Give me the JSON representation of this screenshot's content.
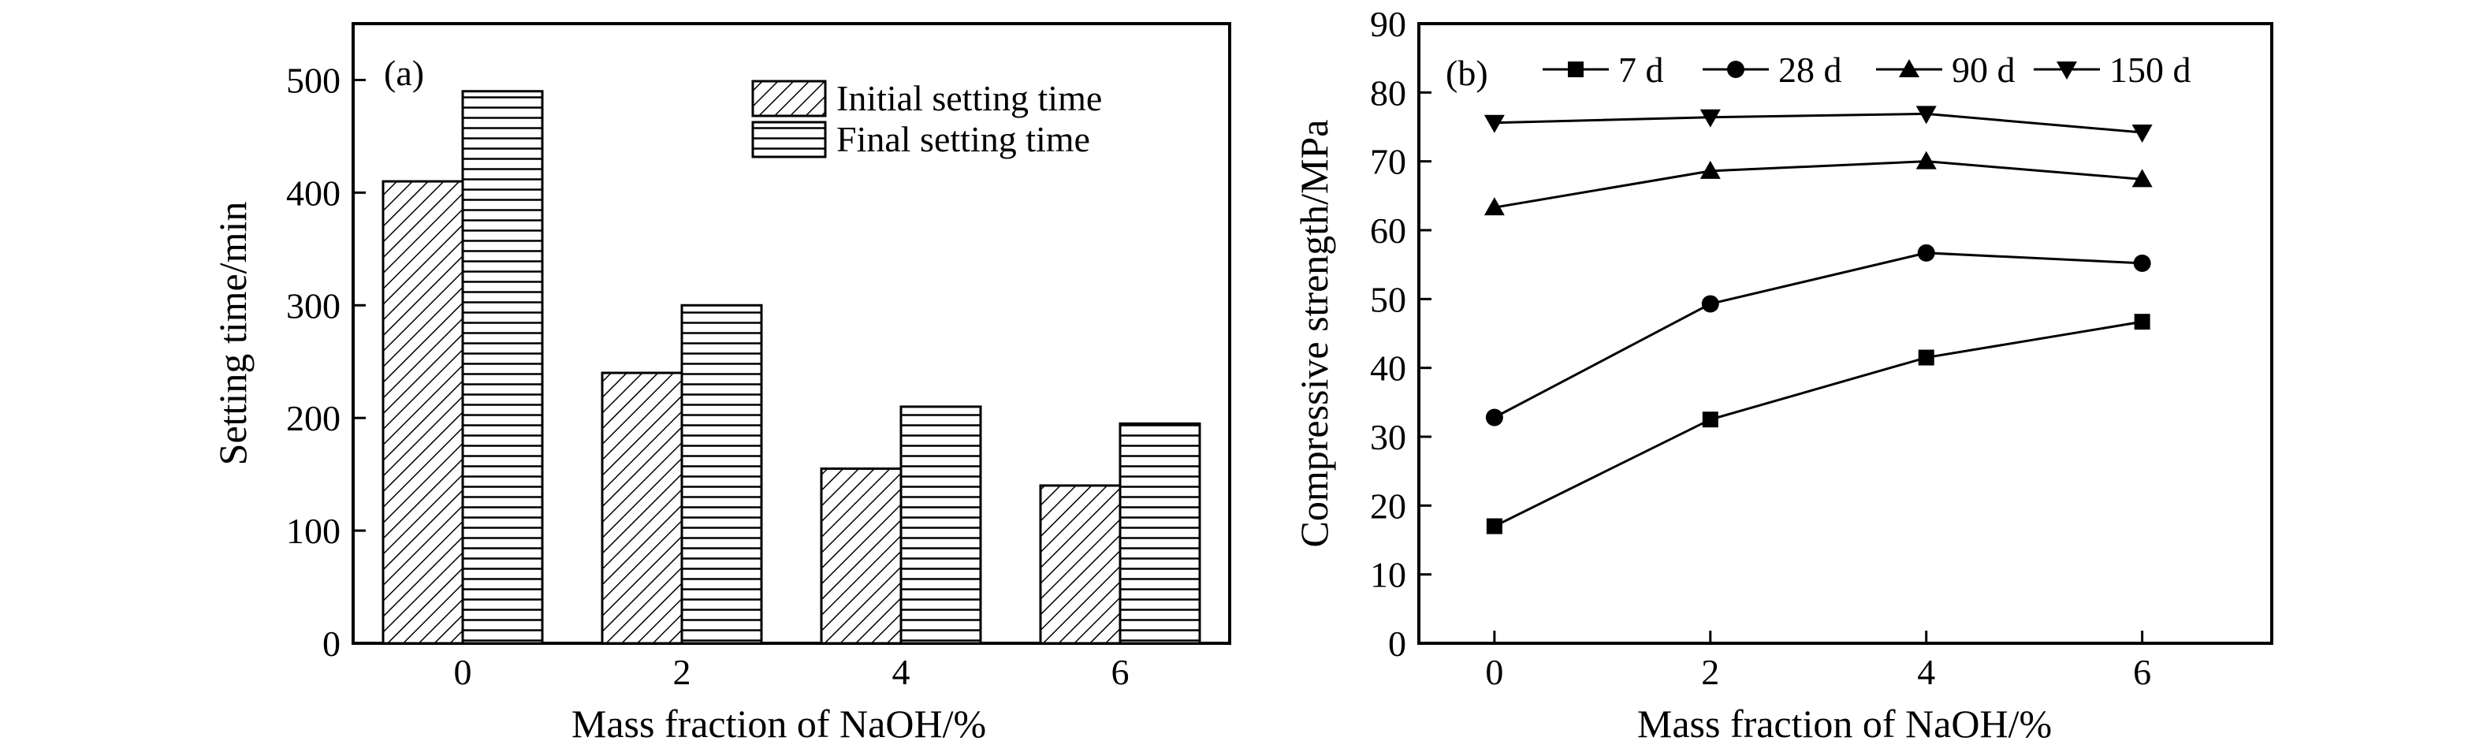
{
  "chart_data": [
    {
      "type": "bar",
      "panel_label": "(a)",
      "categories": [
        "0",
        "2",
        "4",
        "6"
      ],
      "series": [
        {
          "name": "Initial setting time",
          "pattern": "diagonal-hatch",
          "values": [
            410,
            240,
            155,
            140
          ]
        },
        {
          "name": "Final setting time",
          "pattern": "horizontal-hatch",
          "values": [
            490,
            300,
            210,
            195
          ]
        }
      ],
      "xlabel": "Mass fraction of NaOH/%",
      "ylabel": "Setting time/min",
      "ylim": [
        0,
        550
      ],
      "yticks": [
        0,
        100,
        200,
        300,
        400,
        500
      ],
      "grid": false,
      "legend_position": "top-right"
    },
    {
      "type": "line",
      "panel_label": "(b)",
      "x": [
        0,
        2,
        4,
        6
      ],
      "series": [
        {
          "name": "7 d",
          "marker": "square",
          "values": [
            17,
            32.5,
            41.5,
            46.7
          ]
        },
        {
          "name": "28 d",
          "marker": "circle",
          "values": [
            32.8,
            49.3,
            56.7,
            55.2
          ]
        },
        {
          "name": "90 d",
          "marker": "triangle-up",
          "values": [
            63.3,
            68.6,
            70,
            67.4
          ]
        },
        {
          "name": "150 d",
          "marker": "triangle-down",
          "values": [
            75.6,
            76.4,
            76.9,
            74.2
          ]
        }
      ],
      "xlabel": "Mass fraction of NaOH/%",
      "ylabel": "Compressive strength/MPa",
      "xlim": [
        -0.7,
        7.2
      ],
      "xticks": [
        0,
        2,
        4,
        6
      ],
      "ylim": [
        0,
        90
      ],
      "yticks": [
        0,
        10,
        20,
        30,
        40,
        50,
        60,
        70,
        80,
        90
      ],
      "grid": false,
      "legend_position": "top"
    }
  ]
}
